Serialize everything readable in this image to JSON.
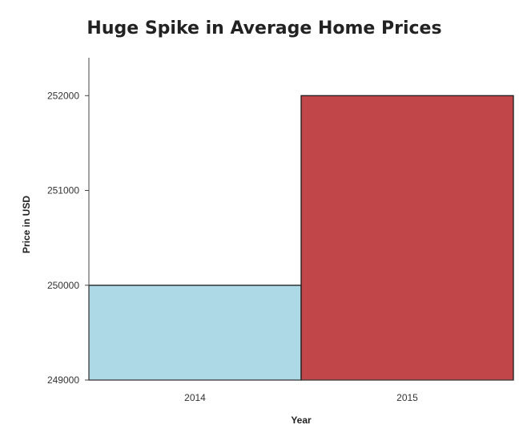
{
  "chart_data": {
    "type": "bar",
    "title": "Huge Spike in Average Home Prices",
    "xlabel": "Year",
    "ylabel": "Price in USD",
    "categories": [
      "2014",
      "2015"
    ],
    "values": [
      250000,
      252000
    ],
    "ylim": [
      249000,
      252400
    ],
    "yticks": [
      249000,
      250000,
      251000,
      252000
    ],
    "ytick_labels": [
      "249000",
      "250000",
      "251000",
      "252000"
    ],
    "colors": [
      "#add8e6",
      "#c0464a"
    ],
    "grid": false,
    "legend": "none"
  }
}
